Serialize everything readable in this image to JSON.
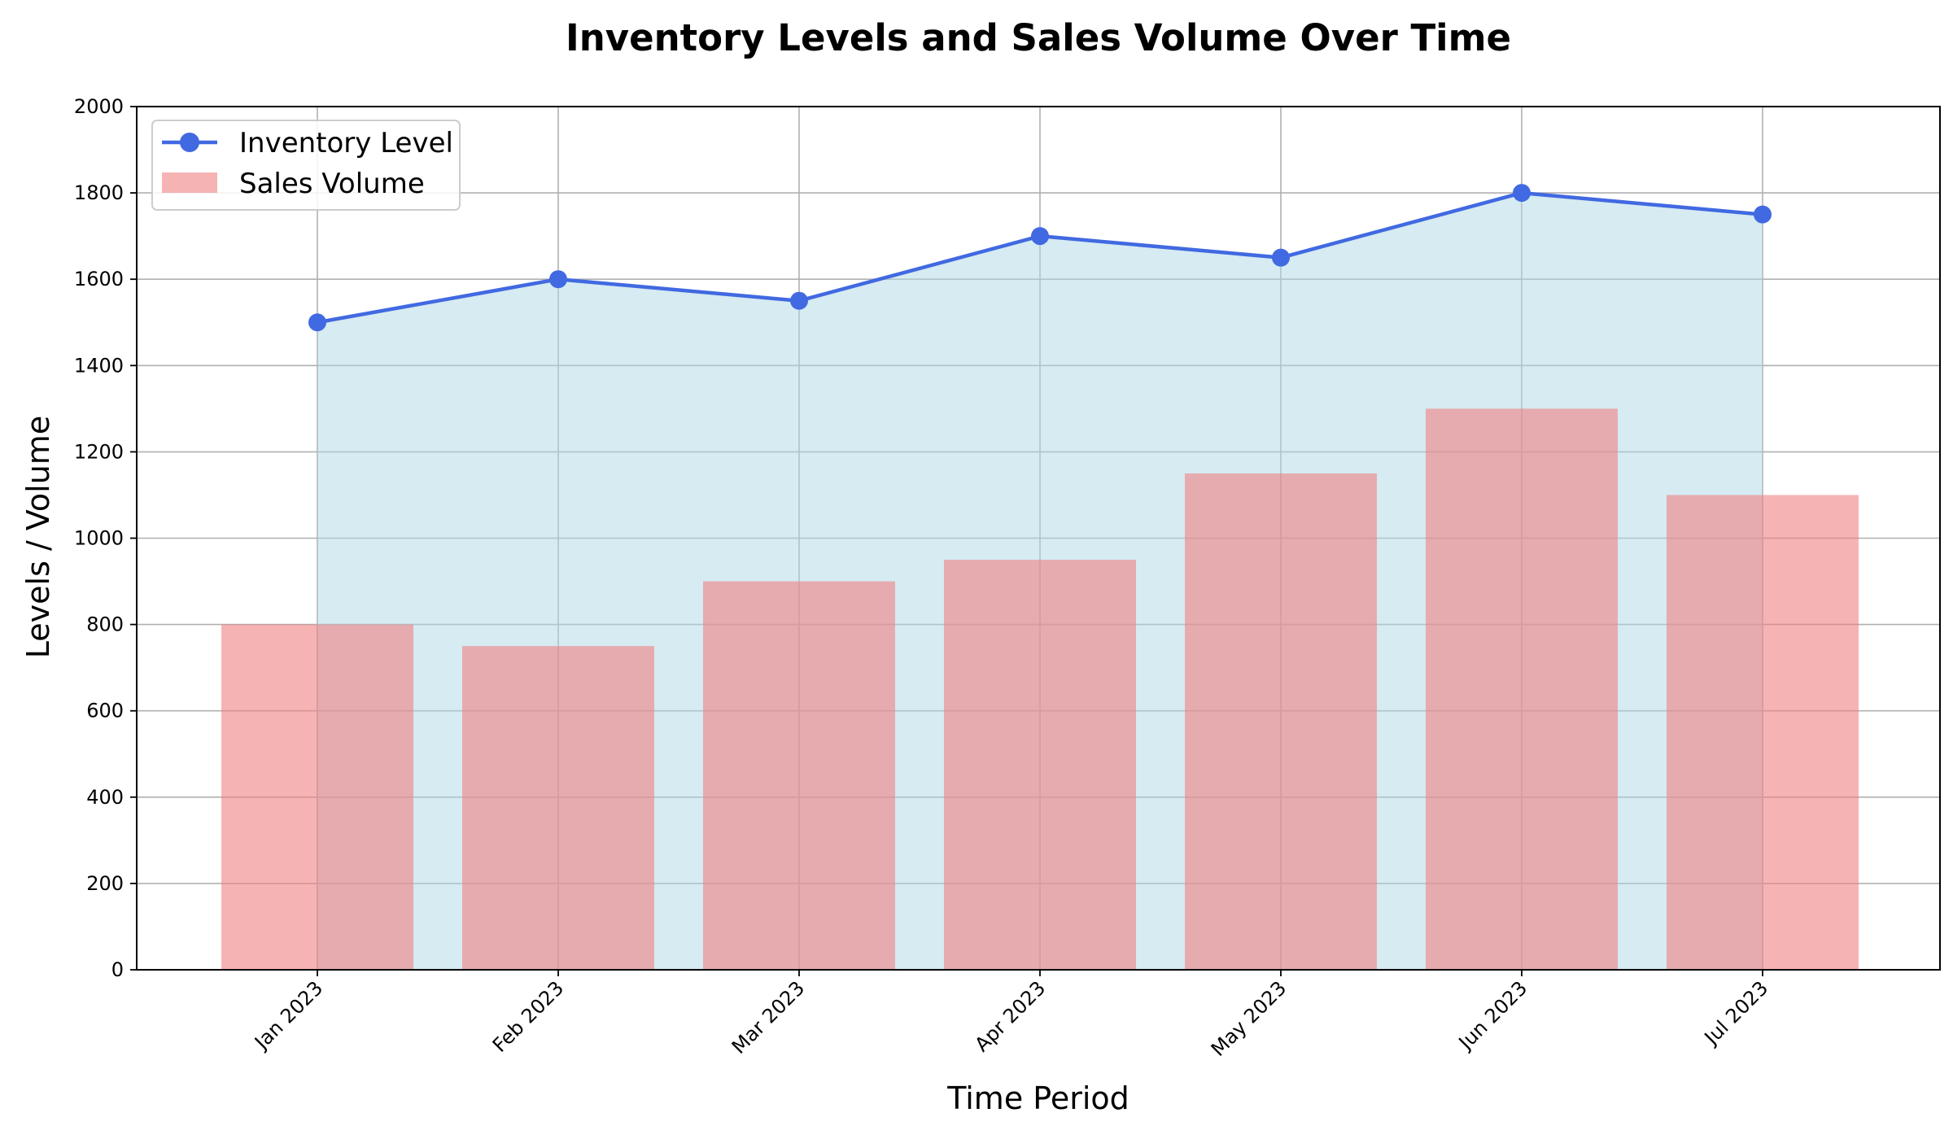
{
  "chart_data": {
    "type": "bar",
    "title": "Inventory Levels and Sales Volume Over Time",
    "xlabel": "Time Period",
    "ylabel": "Levels / Volume",
    "categories": [
      "Jan 2023",
      "Feb 2023",
      "Mar 2023",
      "Apr 2023",
      "May 2023",
      "Jun 2023",
      "Jul 2023"
    ],
    "ylim": [
      0,
      2000
    ],
    "yticks": [
      0,
      200,
      400,
      600,
      800,
      1000,
      1200,
      1400,
      1600,
      1800,
      2000
    ],
    "grid": true,
    "legend_position": "top-left",
    "series": [
      {
        "name": "Inventory Level",
        "kind": "line",
        "values": [
          1500,
          1600,
          1550,
          1700,
          1650,
          1800,
          1750
        ],
        "color": "#4169e1",
        "area_fill": "#add8e6"
      },
      {
        "name": "Sales Volume",
        "kind": "bar",
        "values": [
          800,
          750,
          900,
          950,
          1150,
          1300,
          1100
        ],
        "color": "#f08080"
      }
    ]
  }
}
